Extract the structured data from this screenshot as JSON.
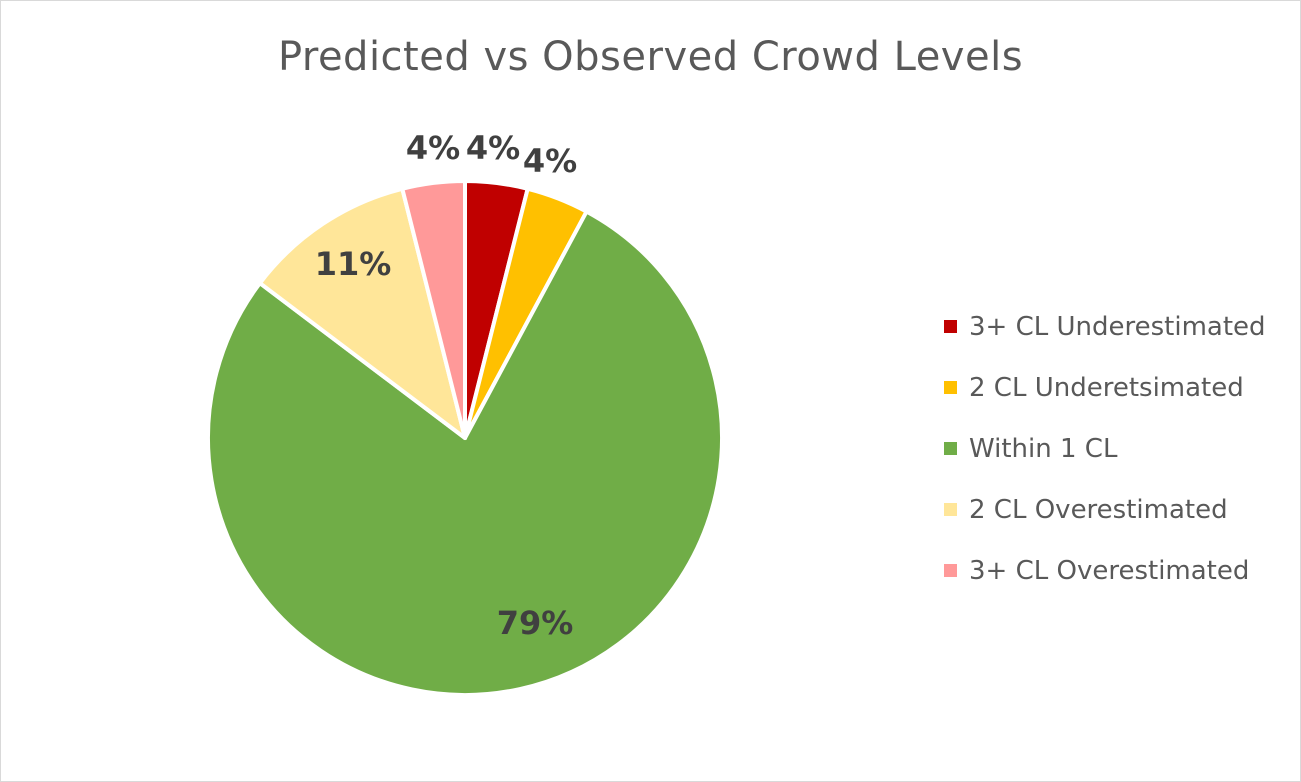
{
  "chart_data": {
    "type": "pie",
    "title": "Predicted vs Observed Crowd Levels",
    "legend_position": "right",
    "slices": [
      {
        "label": "3+ CL Underestimated",
        "value": 4,
        "display": "4%",
        "color": "#c00000"
      },
      {
        "label": "2 CL Underetsimated",
        "value": 4,
        "display": "4%",
        "color": "#ffc000"
      },
      {
        "label": "Within 1 CL",
        "value": 79,
        "display": "79%",
        "color": "#70ad47"
      },
      {
        "label": "2 CL Overestimated",
        "value": 11,
        "display": "11%",
        "color": "#ffe699"
      },
      {
        "label": "3+ CL Overestimated",
        "value": 4,
        "display": "4%",
        "color": "#ff9999"
      }
    ]
  }
}
